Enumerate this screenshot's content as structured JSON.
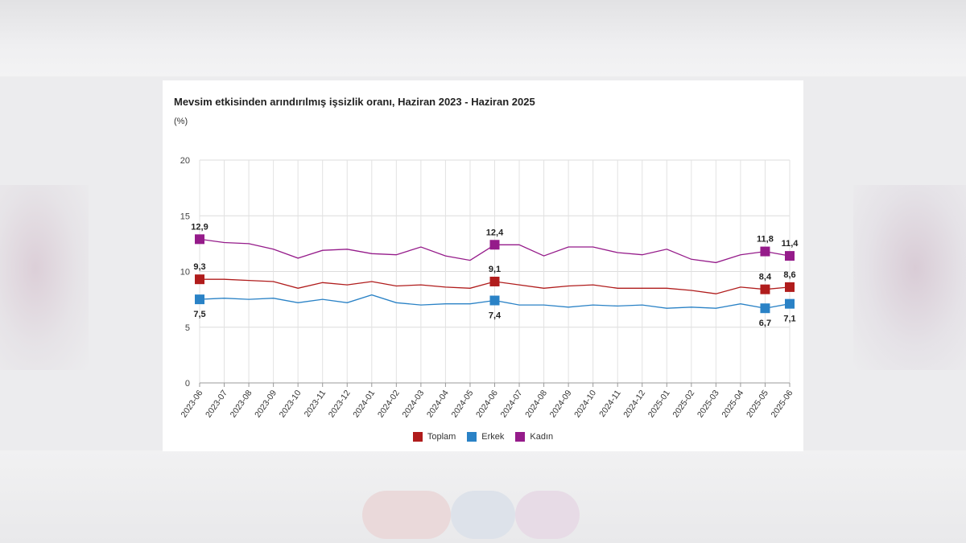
{
  "chart_data": {
    "type": "line",
    "title": "Mevsim etkisinden arındırılmış işsizlik oranı, Haziran 2023 - Haziran 2025",
    "unit_label": "(%)",
    "ylim": [
      0,
      20
    ],
    "yticks": [
      "0",
      "5",
      "10",
      "15",
      "20"
    ],
    "ytick_values": [
      0,
      5,
      10,
      15,
      20
    ],
    "grid": true,
    "legend_position": "bottom",
    "categories": [
      "2023-06",
      "2023-07",
      "2023-08",
      "2023-09",
      "2023-10",
      "2023-11",
      "2023-12",
      "2024-01",
      "2024-02",
      "2024-03",
      "2024-04",
      "2024-05",
      "2024-06",
      "2024-07",
      "2024-08",
      "2024-09",
      "2024-10",
      "2024-11",
      "2024-12",
      "2025-01",
      "2025-02",
      "2025-03",
      "2025-04",
      "2025-05",
      "2025-06"
    ],
    "series": [
      {
        "name": "Toplam",
        "color": "#b01c1c",
        "values": [
          9.3,
          9.3,
          9.2,
          9.1,
          8.5,
          9.0,
          8.8,
          9.1,
          8.7,
          8.8,
          8.6,
          8.5,
          9.1,
          8.8,
          8.5,
          8.7,
          8.8,
          8.5,
          8.5,
          8.5,
          8.3,
          8.0,
          8.6,
          8.4,
          8.6
        ],
        "markers": [
          {
            "index": 0,
            "label": "9,3"
          },
          {
            "index": 12,
            "label": "9,1"
          },
          {
            "index": 23,
            "label": "8,4"
          },
          {
            "index": 24,
            "label": "8,6"
          }
        ]
      },
      {
        "name": "Erkek",
        "color": "#2a82c6",
        "values": [
          7.5,
          7.6,
          7.5,
          7.6,
          7.2,
          7.5,
          7.2,
          7.9,
          7.2,
          7.0,
          7.1,
          7.1,
          7.4,
          7.0,
          7.0,
          6.8,
          7.0,
          6.9,
          7.0,
          6.7,
          6.8,
          6.7,
          7.1,
          6.7,
          7.1
        ],
        "markers": [
          {
            "index": 0,
            "label": "7,5"
          },
          {
            "index": 12,
            "label": "7,4"
          },
          {
            "index": 23,
            "label": "6,7"
          },
          {
            "index": 24,
            "label": "7,1"
          }
        ]
      },
      {
        "name": "Kadın",
        "color": "#951b8a",
        "values": [
          12.9,
          12.6,
          12.5,
          12.0,
          11.2,
          11.9,
          12.0,
          11.6,
          11.5,
          12.2,
          11.4,
          11.0,
          12.4,
          12.4,
          11.4,
          12.2,
          12.2,
          11.7,
          11.5,
          12.0,
          11.1,
          10.8,
          11.5,
          11.8,
          11.4
        ],
        "markers": [
          {
            "index": 0,
            "label": "12,9"
          },
          {
            "index": 12,
            "label": "12,4"
          },
          {
            "index": 23,
            "label": "11,8"
          },
          {
            "index": 24,
            "label": "11,4"
          }
        ]
      }
    ]
  }
}
